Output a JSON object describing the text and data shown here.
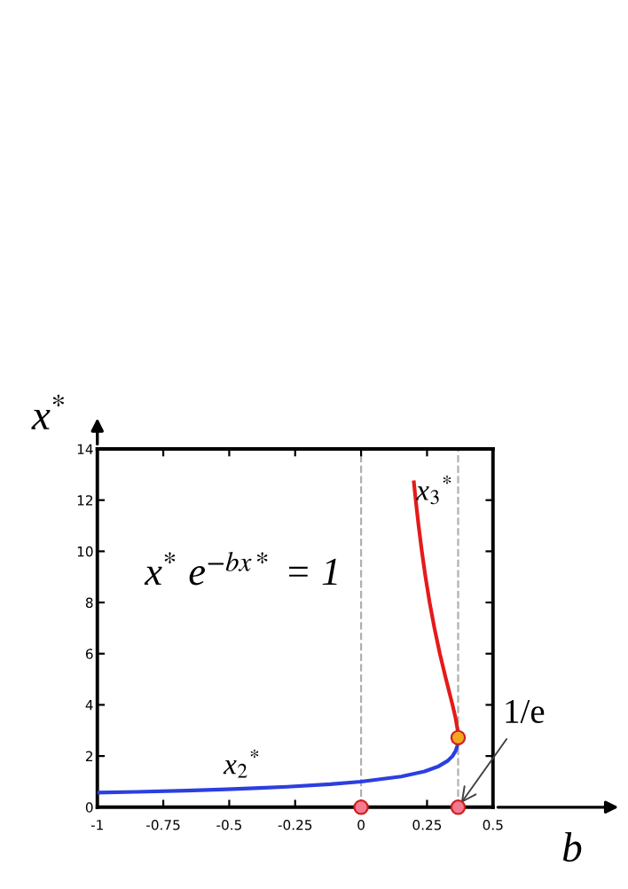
{
  "chart_data": {
    "type": "line",
    "xlabel": "b",
    "ylabel": "x$^{*}$",
    "xlim": [
      -1,
      0.5
    ],
    "ylim": [
      0,
      14
    ],
    "xticks": [
      -1,
      -0.75,
      -0.5,
      -0.25,
      0,
      0.25,
      0.5
    ],
    "yticks": [
      0,
      2,
      4,
      6,
      8,
      10,
      12,
      14
    ],
    "grid": false,
    "legend": false,
    "marker": "none",
    "line_style": "solid",
    "series": [
      {
        "name": "x$_{2}$$^{*}$",
        "color": "#2b3fe0",
        "x": [
          -1,
          -0.851,
          -0.663,
          -0.5095,
          -0.3836,
          -0.2789,
          -0.1171,
          0,
          0.1519,
          0.2403,
          0.2938,
          0.3265,
          0.3466,
          0.3584,
          0.3648,
          0.3675,
          0.3679
        ],
        "values": [
          0.57,
          0.6,
          0.65,
          0.7,
          0.75,
          0.8,
          0.9,
          1.0,
          1.2,
          1.4,
          1.6,
          1.8,
          2.0,
          2.2,
          2.4,
          2.6,
          2.72
        ]
      },
      {
        "name": "x$_{3}$$^{*}$",
        "color": "#e51a1a",
        "x": [
          0.3679,
          0.3662,
          0.3579,
          0.3466,
          0.3219,
          0.2986,
          0.278,
          0.2599,
          0.2441,
          0.2303,
          0.218,
          0.2071,
          0.2001
        ],
        "values": [
          2.72,
          3,
          3.5,
          4,
          5,
          6,
          7,
          8,
          9,
          10,
          11,
          12,
          12.7
        ]
      },
      {
        "type": "scatter",
        "marker": "circle",
        "x": [
          0,
          0.3679,
          0.3679
        ],
        "values": [
          0,
          0,
          2.72
        ],
        "colors": [
          "#f47a90",
          "#f47a90",
          "#f2a81e"
        ]
      }
    ],
    "ref_lines": [
      {
        "axis": "x",
        "value": 0,
        "line_style": "dashed",
        "color": "#b0b0b0"
      },
      {
        "axis": "x",
        "value": 0.3679,
        "line_style": "dashed",
        "color": "#b0b0b0",
        "label": "1/e"
      }
    ],
    "annotations": [
      "x$^{*}$ e$^{−bx*}$ = 1"
    ]
  }
}
